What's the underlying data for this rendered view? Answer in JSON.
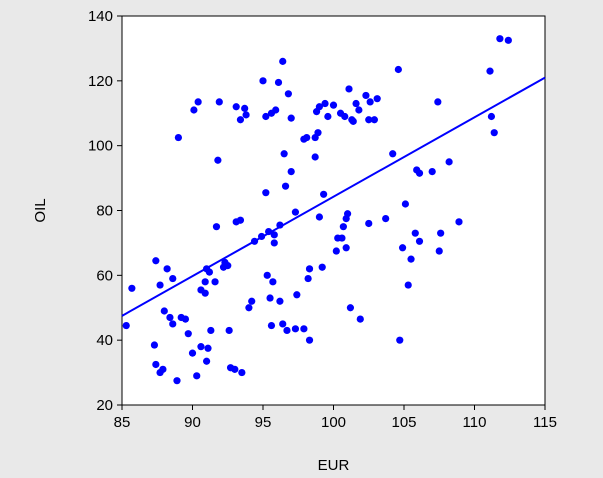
{
  "chart_data": {
    "type": "scatter",
    "xlabel": "EUR",
    "ylabel": "OIL",
    "xlim": [
      85,
      115
    ],
    "ylim": [
      20,
      140
    ],
    "xticks": [
      "85",
      "90",
      "95",
      "100",
      "105",
      "110",
      "115"
    ],
    "yticks": [
      "20",
      "40",
      "60",
      "80",
      "100",
      "120",
      "140"
    ],
    "grid": false,
    "point_color": "#0000ff",
    "fit_line_color": "#0000ff",
    "fit_line": {
      "x": [
        85,
        115
      ],
      "y": [
        47.5,
        121
      ]
    },
    "points": [
      [
        85.3,
        44.5
      ],
      [
        85.7,
        56
      ],
      [
        87.4,
        64.5
      ],
      [
        87.3,
        38.5
      ],
      [
        87.4,
        32.5
      ],
      [
        87.7,
        30
      ],
      [
        87.9,
        31
      ],
      [
        87.7,
        57
      ],
      [
        88.0,
        49
      ],
      [
        88.2,
        62
      ],
      [
        88.4,
        47
      ],
      [
        88.6,
        59
      ],
      [
        88.6,
        45
      ],
      [
        88.9,
        27.5
      ],
      [
        89.0,
        102.5
      ],
      [
        89.2,
        47
      ],
      [
        89.5,
        46.5
      ],
      [
        89.7,
        42
      ],
      [
        90.0,
        36
      ],
      [
        90.1,
        111
      ],
      [
        90.3,
        29
      ],
      [
        90.4,
        113.5
      ],
      [
        90.6,
        55.5
      ],
      [
        90.6,
        38
      ],
      [
        90.9,
        58
      ],
      [
        90.9,
        54.5
      ],
      [
        91.0,
        62
      ],
      [
        91.0,
        33.5
      ],
      [
        91.1,
        37.5
      ],
      [
        91.2,
        61
      ],
      [
        91.3,
        43
      ],
      [
        91.6,
        58
      ],
      [
        91.7,
        75
      ],
      [
        91.8,
        95.5
      ],
      [
        91.9,
        113.5
      ],
      [
        92.2,
        62.5
      ],
      [
        92.3,
        64
      ],
      [
        92.5,
        63
      ],
      [
        92.6,
        43
      ],
      [
        92.7,
        31.5
      ],
      [
        93.0,
        31
      ],
      [
        93.1,
        112
      ],
      [
        93.1,
        76.5
      ],
      [
        93.4,
        108
      ],
      [
        93.5,
        30
      ],
      [
        93.4,
        77
      ],
      [
        93.7,
        111.5
      ],
      [
        93.8,
        109.5
      ],
      [
        94.0,
        50
      ],
      [
        94.2,
        52
      ],
      [
        94.4,
        70.5
      ],
      [
        94.9,
        72
      ],
      [
        95.0,
        120
      ],
      [
        95.2,
        85.5
      ],
      [
        95.2,
        109
      ],
      [
        95.3,
        60
      ],
      [
        95.4,
        73.5
      ],
      [
        95.5,
        53
      ],
      [
        95.6,
        44.5
      ],
      [
        95.6,
        110
      ],
      [
        95.7,
        58
      ],
      [
        95.8,
        72.5
      ],
      [
        95.8,
        70
      ],
      [
        95.9,
        111
      ],
      [
        96.1,
        119.5
      ],
      [
        96.2,
        52
      ],
      [
        96.2,
        75.5
      ],
      [
        96.4,
        126
      ],
      [
        96.4,
        45
      ],
      [
        96.5,
        97.5
      ],
      [
        96.6,
        87.5
      ],
      [
        96.7,
        43
      ],
      [
        96.8,
        116
      ],
      [
        97.0,
        92
      ],
      [
        97.0,
        108.5
      ],
      [
        97.3,
        79.5
      ],
      [
        97.3,
        43.5
      ],
      [
        97.4,
        54
      ],
      [
        97.9,
        102
      ],
      [
        97.9,
        43.5
      ],
      [
        98.1,
        102.5
      ],
      [
        98.2,
        59
      ],
      [
        98.3,
        62
      ],
      [
        98.3,
        40
      ],
      [
        98.7,
        96.5
      ],
      [
        98.7,
        102.5
      ],
      [
        98.8,
        110.5
      ],
      [
        98.9,
        104
      ],
      [
        99.0,
        112
      ],
      [
        99.0,
        78
      ],
      [
        99.2,
        62.5
      ],
      [
        99.3,
        85
      ],
      [
        99.4,
        113
      ],
      [
        99.6,
        109
      ],
      [
        100.0,
        112.5
      ],
      [
        100.2,
        67.5
      ],
      [
        100.3,
        71.5
      ],
      [
        100.5,
        110
      ],
      [
        100.6,
        71.5
      ],
      [
        100.7,
        75
      ],
      [
        100.8,
        109
      ],
      [
        100.9,
        68.5
      ],
      [
        100.9,
        77.5
      ],
      [
        101.0,
        79
      ],
      [
        101.1,
        117.5
      ],
      [
        101.2,
        50
      ],
      [
        101.3,
        108
      ],
      [
        101.4,
        107.5
      ],
      [
        101.6,
        113
      ],
      [
        101.8,
        111
      ],
      [
        101.9,
        46.5
      ],
      [
        102.3,
        115.5
      ],
      [
        102.5,
        76
      ],
      [
        102.5,
        108
      ],
      [
        102.6,
        113.5
      ],
      [
        102.9,
        108
      ],
      [
        103.1,
        114.5
      ],
      [
        103.7,
        77.5
      ],
      [
        104.2,
        97.5
      ],
      [
        104.6,
        123.5
      ],
      [
        104.7,
        40
      ],
      [
        104.9,
        68.5
      ],
      [
        105.1,
        82
      ],
      [
        105.3,
        57
      ],
      [
        105.5,
        65
      ],
      [
        105.8,
        73
      ],
      [
        105.9,
        92.5
      ],
      [
        106.1,
        91.5
      ],
      [
        106.1,
        70.5
      ],
      [
        107.0,
        92
      ],
      [
        107.4,
        113.5
      ],
      [
        107.5,
        67.5
      ],
      [
        107.6,
        73
      ],
      [
        108.2,
        95
      ],
      [
        108.9,
        76.5
      ],
      [
        111.1,
        123
      ],
      [
        111.2,
        109
      ],
      [
        111.4,
        104
      ],
      [
        111.8,
        133
      ],
      [
        112.4,
        132.5
      ]
    ]
  }
}
